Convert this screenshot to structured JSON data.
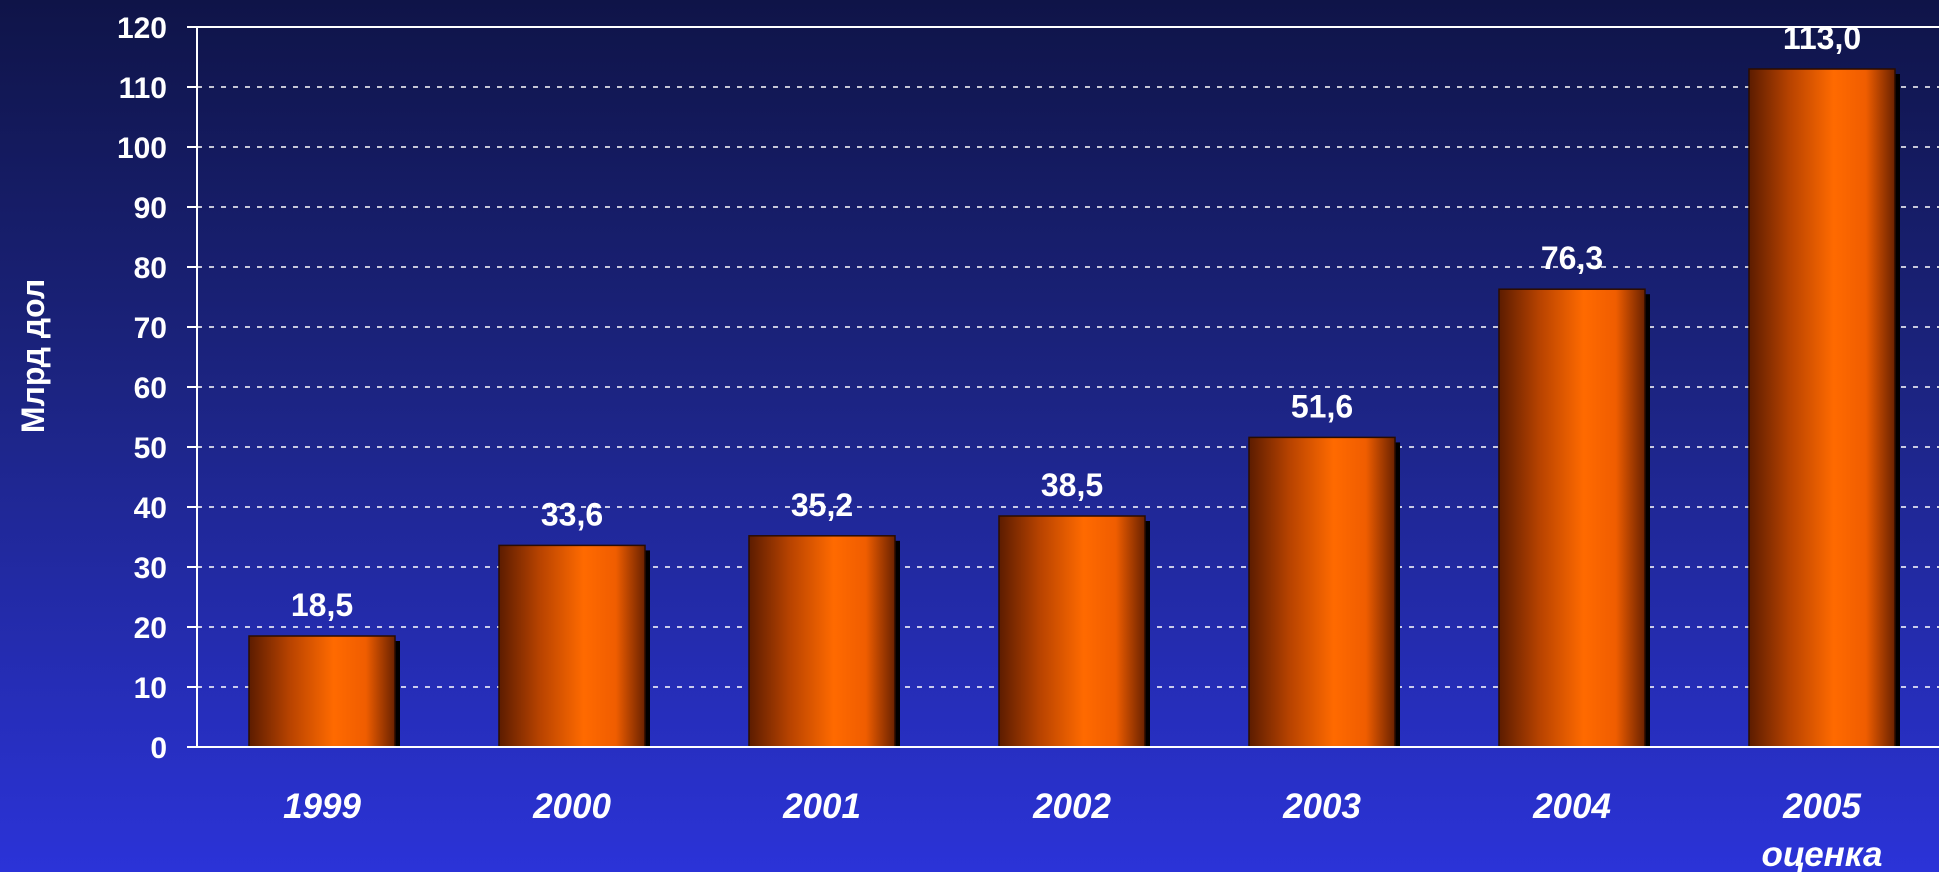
{
  "chart_data": {
    "type": "bar",
    "ylabel": "Млрд дол",
    "xlabel": "",
    "ylim": [
      0,
      120
    ],
    "ytick_step": 10,
    "yticks": [
      "0",
      "10",
      "20",
      "30",
      "40",
      "50",
      "60",
      "70",
      "80",
      "90",
      "100",
      "110",
      "120"
    ],
    "grid": true,
    "categories": [
      "1999",
      "2000",
      "2001",
      "2002",
      "2003",
      "2004",
      "2005"
    ],
    "category_sublabels": [
      "",
      "",
      "",
      "",
      "",
      "",
      "оценка"
    ],
    "values": [
      18.5,
      33.6,
      35.2,
      38.5,
      51.6,
      76.3,
      113.0
    ],
    "value_labels": [
      "18,5",
      "33,6",
      "35,2",
      "38,5",
      "51,6",
      "76,3",
      "113,0"
    ],
    "bar_color": "#ff6a00",
    "bar_shade_color": "#5c1c00",
    "text_color": "#ffffff"
  }
}
